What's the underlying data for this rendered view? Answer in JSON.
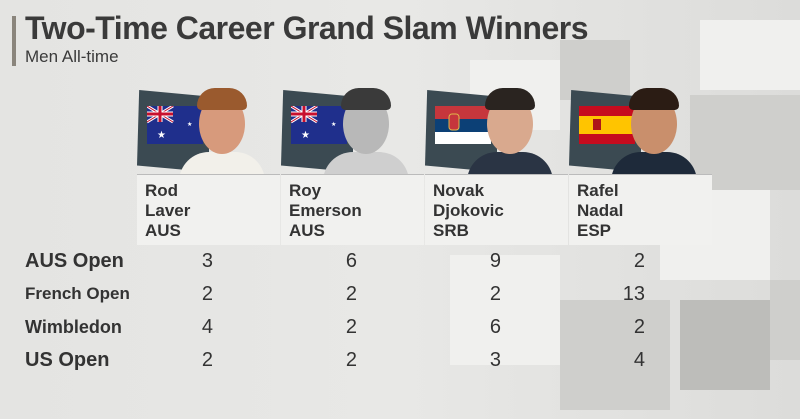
{
  "header": {
    "title": "Two-Time Career Grand Slam Winners",
    "subtitle": "Men All-time"
  },
  "players": [
    {
      "first": "Rod",
      "last": "Laver",
      "country": "AUS",
      "flag": "australia-flag",
      "photo_style": "color"
    },
    {
      "first": "Roy",
      "last": "Emerson",
      "country": "AUS",
      "flag": "australia-flag",
      "photo_style": "black-and-white"
    },
    {
      "first": "Novak",
      "last": "Djokovic",
      "country": "SRB",
      "flag": "serbia-flag",
      "photo_style": "color"
    },
    {
      "first": "Rafel",
      "last": "Nadal",
      "country": "ESP",
      "flag": "spain-flag",
      "photo_style": "color"
    }
  ],
  "rows": [
    {
      "label": "AUS Open",
      "values": [
        "3",
        "6",
        "9",
        "2"
      ]
    },
    {
      "label": "French Open",
      "values": [
        "2",
        "2",
        "2",
        "13"
      ]
    },
    {
      "label": "Wimbledon",
      "values": [
        "4",
        "2",
        "6",
        "2"
      ]
    },
    {
      "label": "US Open",
      "values": [
        "2",
        "2",
        "3",
        "4"
      ]
    }
  ],
  "colors": {
    "flag_card": "#3b4a52",
    "text": "#333333",
    "accent_bar": "#8a857c"
  }
}
